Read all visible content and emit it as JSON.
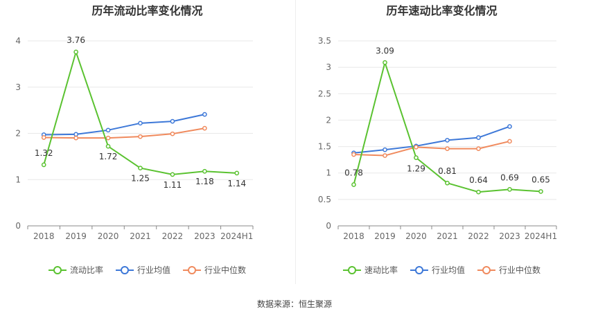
{
  "source": "数据来源：恒生聚源",
  "chart_data": [
    {
      "type": "line",
      "title": "历年流动比率变化情况",
      "categories": [
        "2018",
        "2019",
        "2020",
        "2021",
        "2022",
        "2023",
        "2024H1"
      ],
      "yticks": [
        "0",
        "1",
        "2",
        "3",
        "4"
      ],
      "ylim": [
        0,
        4
      ],
      "grid": true,
      "legend_position": "bottom",
      "series": [
        {
          "name": "流动比率",
          "color": "#5ac230",
          "values": [
            1.32,
            3.76,
            1.72,
            1.25,
            1.11,
            1.18,
            1.14
          ],
          "labels": [
            "1.32",
            "3.76",
            "1.72",
            "1.25",
            "1.11",
            "1.18",
            "1.14"
          ]
        },
        {
          "name": "行业均值",
          "color": "#3d78d8",
          "values": [
            1.97,
            1.98,
            2.07,
            2.22,
            2.26,
            2.41,
            null
          ]
        },
        {
          "name": "行业中位数",
          "color": "#f08a5d",
          "values": [
            1.91,
            1.9,
            1.9,
            1.93,
            1.99,
            2.11,
            null
          ]
        }
      ]
    },
    {
      "type": "line",
      "title": "历年速动比率变化情况",
      "categories": [
        "2018",
        "2019",
        "2020",
        "2021",
        "2022",
        "2023",
        "2024H1"
      ],
      "yticks": [
        "0",
        "0.5",
        "1",
        "1.5",
        "2",
        "2.5",
        "3",
        "3.5"
      ],
      "ylim": [
        0,
        3.5
      ],
      "grid": true,
      "legend_position": "bottom",
      "series": [
        {
          "name": "速动比率",
          "color": "#5ac230",
          "values": [
            0.78,
            3.09,
            1.29,
            0.81,
            0.64,
            0.69,
            0.65
          ],
          "labels": [
            "0.78",
            "3.09",
            "1.29",
            "0.81",
            "0.64",
            "0.69",
            "0.65"
          ]
        },
        {
          "name": "行业均值",
          "color": "#3d78d8",
          "values": [
            1.38,
            1.44,
            1.51,
            1.62,
            1.67,
            1.88,
            null
          ]
        },
        {
          "name": "行业中位数",
          "color": "#f08a5d",
          "values": [
            1.35,
            1.33,
            1.49,
            1.46,
            1.46,
            1.6,
            null
          ]
        }
      ]
    }
  ]
}
